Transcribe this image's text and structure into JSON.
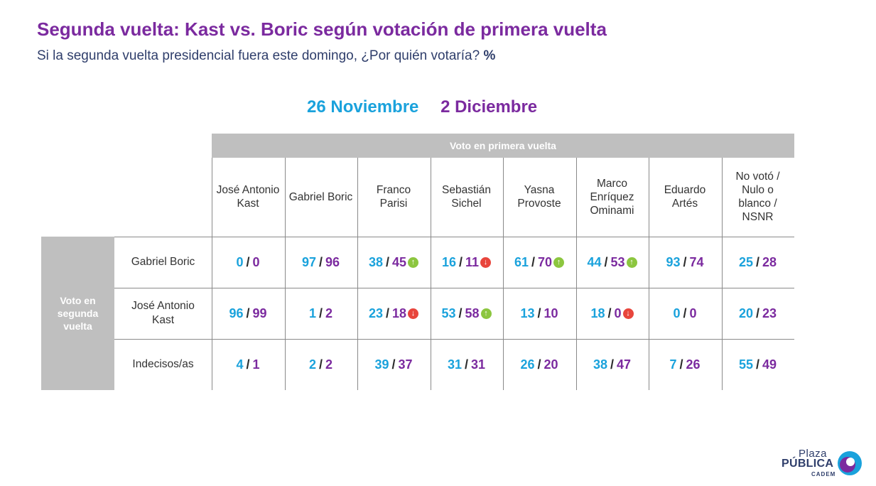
{
  "title": "Segunda vuelta: Kast vs. Boric según votación de primera vuelta",
  "subtitle_text": "Si la segunda vuelta presidencial fuera este domingo, ¿Por quién votaría?",
  "subtitle_unit": "%",
  "legend": {
    "date1": "26 Noviembre",
    "date2": "2 Diciembre"
  },
  "colors": {
    "date1": "#1aa2dc",
    "date2": "#7b2a9f",
    "header_bg": "#bfbfbf",
    "up": "#8cc63f",
    "down": "#e8453c"
  },
  "chart_data": {
    "type": "table",
    "column_group_label": "Voto en primera vuelta",
    "row_group_label": "Voto en segunda vuelta",
    "columns": [
      "José Antonio Kast",
      "Gabriel Boric",
      "Franco Parisi",
      "Sebastián Sichel",
      "Yasna Provoste",
      "Marco Enríquez Ominami",
      "Eduardo Artés",
      "No votó / Nulo o blanco / NSNR"
    ],
    "rows": [
      {
        "label": "Gabriel Boric",
        "cells": [
          {
            "v1": "0",
            "v2": "0",
            "trend": ""
          },
          {
            "v1": "97",
            "v2": "96",
            "trend": ""
          },
          {
            "v1": "38",
            "v2": "45",
            "trend": "up"
          },
          {
            "v1": "16",
            "v2": "11",
            "trend": "down"
          },
          {
            "v1": "61",
            "v2": "70",
            "trend": "up"
          },
          {
            "v1": "44",
            "v2": "53",
            "trend": "up"
          },
          {
            "v1": "93",
            "v2": "74",
            "trend": ""
          },
          {
            "v1": "25",
            "v2": "28",
            "trend": ""
          }
        ]
      },
      {
        "label": "José Antonio Kast",
        "cells": [
          {
            "v1": "96",
            "v2": "99",
            "trend": ""
          },
          {
            "v1": "1",
            "v2": "2",
            "trend": ""
          },
          {
            "v1": "23",
            "v2": "18",
            "trend": "down"
          },
          {
            "v1": "53",
            "v2": "58",
            "trend": "up"
          },
          {
            "v1": "13",
            "v2": "10",
            "trend": ""
          },
          {
            "v1": "18",
            "v2": "0",
            "trend": "down"
          },
          {
            "v1": "0",
            "v2": "0",
            "trend": ""
          },
          {
            "v1": "20",
            "v2": "23",
            "trend": ""
          }
        ]
      },
      {
        "label": "Indecisos/as",
        "cells": [
          {
            "v1": "4",
            "v2": "1",
            "trend": ""
          },
          {
            "v1": "2",
            "v2": "2",
            "trend": ""
          },
          {
            "v1": "39",
            "v2": "37",
            "trend": ""
          },
          {
            "v1": "31",
            "v2": "31",
            "trend": ""
          },
          {
            "v1": "26",
            "v2": "20",
            "trend": ""
          },
          {
            "v1": "38",
            "v2": "47",
            "trend": ""
          },
          {
            "v1": "7",
            "v2": "26",
            "trend": ""
          },
          {
            "v1": "55",
            "v2": "49",
            "trend": ""
          }
        ]
      }
    ]
  },
  "logo": {
    "line1": "Plaza",
    "line2": "PÚBLICA",
    "line3": "CADEM"
  }
}
